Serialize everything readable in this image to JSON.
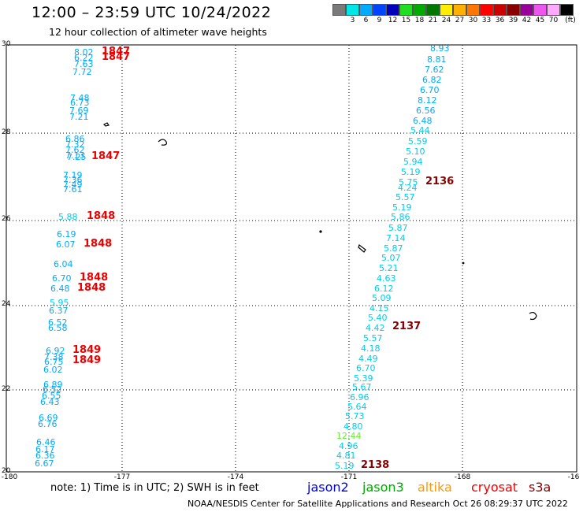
{
  "title": "12:00 – 23:59 UTC 10/24/2022",
  "subtitle": "12 hour collection of altimeter wave heights",
  "legend": {
    "unit": "(ft)",
    "bins": [
      {
        "label": "",
        "color": "#7a7a7a"
      },
      {
        "label": "3",
        "color": "#00e5e5"
      },
      {
        "label": "6",
        "color": "#00aaff"
      },
      {
        "label": "9",
        "color": "#0044ff"
      },
      {
        "label": "12",
        "color": "#0000bb"
      },
      {
        "label": "15",
        "color": "#22dd22"
      },
      {
        "label": "18",
        "color": "#00aa00"
      },
      {
        "label": "21",
        "color": "#007700"
      },
      {
        "label": "24",
        "color": "#ffee00"
      },
      {
        "label": "27",
        "color": "#ffb000"
      },
      {
        "label": "30",
        "color": "#ff7700"
      },
      {
        "label": "33",
        "color": "#ff0000"
      },
      {
        "label": "36",
        "color": "#cc0000"
      },
      {
        "label": "39",
        "color": "#880000"
      },
      {
        "label": "42",
        "color": "#990099"
      },
      {
        "label": "45",
        "color": "#ee55ee"
      },
      {
        "label": "70",
        "color": "#ffaaff"
      },
      {
        "label": "",
        "color": "#000000"
      }
    ]
  },
  "axes": {
    "x_ticks": [
      "-180",
      "-177",
      "-174",
      "-171",
      "-168",
      "-16"
    ],
    "y_ticks": [
      "30",
      "28",
      "26",
      "24",
      "22",
      "20"
    ]
  },
  "track_west": [
    {
      "v": "8.02",
      "c": "#00aaff"
    },
    {
      "v": "6.22",
      "c": "#00aaff"
    },
    {
      "v": "7.63",
      "c": "#00aaff"
    },
    {
      "v": "7.72",
      "c": "#00aaff"
    },
    {
      "v": "7.48",
      "c": "#00aaff"
    },
    {
      "v": "6.73",
      "c": "#00aaff"
    },
    {
      "v": "7.69",
      "c": "#00aaff"
    },
    {
      "v": "7.21",
      "c": "#00aaff"
    },
    {
      "v": "6.86",
      "c": "#00aaff"
    },
    {
      "v": "7.32",
      "c": "#00aaff"
    },
    {
      "v": "7.62",
      "c": "#00aaff"
    },
    {
      "v": "7.13",
      "c": "#00aaff"
    },
    {
      "v": "7.25",
      "c": "#00aaff"
    },
    {
      "v": "7.19",
      "c": "#00aaff"
    },
    {
      "v": "7.36",
      "c": "#00aaff"
    },
    {
      "v": "7.49",
      "c": "#00aaff"
    },
    {
      "v": "7.61",
      "c": "#00aaff"
    },
    {
      "v": "5.88",
      "c": "#00ccee"
    },
    {
      "v": "6.19",
      "c": "#00aaff"
    },
    {
      "v": "6.07",
      "c": "#00aaff"
    },
    {
      "v": "6.04",
      "c": "#00aaff"
    },
    {
      "v": "6.70",
      "c": "#00aaff"
    },
    {
      "v": "6.48",
      "c": "#00aaff"
    },
    {
      "v": "5.95",
      "c": "#00ccee"
    },
    {
      "v": "6.37",
      "c": "#00aaff"
    },
    {
      "v": "6.52",
      "c": "#00aaff"
    },
    {
      "v": "6.58",
      "c": "#00aaff"
    },
    {
      "v": "6.92",
      "c": "#00aaff"
    },
    {
      "v": "7.38",
      "c": "#00aaff"
    },
    {
      "v": "6.75",
      "c": "#00aaff"
    },
    {
      "v": "6.02",
      "c": "#00aaff"
    },
    {
      "v": "6.89",
      "c": "#00aaff"
    },
    {
      "v": "6.52",
      "c": "#00aaff"
    },
    {
      "v": "6.55",
      "c": "#00aaff"
    },
    {
      "v": "6.43",
      "c": "#00aaff"
    },
    {
      "v": "6.69",
      "c": "#00aaff"
    },
    {
      "v": "6.76",
      "c": "#00aaff"
    },
    {
      "v": "6.46",
      "c": "#00aaff"
    },
    {
      "v": "6.17",
      "c": "#00aaff"
    },
    {
      "v": "6.36",
      "c": "#00aaff"
    },
    {
      "v": "6.67",
      "c": "#00aaff"
    }
  ],
  "track_east": [
    {
      "v": "8.93",
      "c": "#00aaff"
    },
    {
      "v": "8.81",
      "c": "#00aaff"
    },
    {
      "v": "7.62",
      "c": "#00aaff"
    },
    {
      "v": "6.82",
      "c": "#00aaff"
    },
    {
      "v": "6.70",
      "c": "#00aaff"
    },
    {
      "v": "8.12",
      "c": "#00aaff"
    },
    {
      "v": "6.56",
      "c": "#00aaff"
    },
    {
      "v": "6.48",
      "c": "#00aaff"
    },
    {
      "v": "5.44",
      "c": "#00ccee"
    },
    {
      "v": "5.59",
      "c": "#00ccee"
    },
    {
      "v": "5.10",
      "c": "#00ccee"
    },
    {
      "v": "5.94",
      "c": "#00ccee"
    },
    {
      "v": "5.19",
      "c": "#00ccee"
    },
    {
      "v": "5.75",
      "c": "#00ccee"
    },
    {
      "v": "4.24",
      "c": "#00ccee"
    },
    {
      "v": "5.57",
      "c": "#00ccee"
    },
    {
      "v": "5.19",
      "c": "#00ccee"
    },
    {
      "v": "5.86",
      "c": "#00ccee"
    },
    {
      "v": "5.87",
      "c": "#00ccee"
    },
    {
      "v": "7.14",
      "c": "#00ccee"
    },
    {
      "v": "5.87",
      "c": "#00ccee"
    },
    {
      "v": "5.07",
      "c": "#00ccee"
    },
    {
      "v": "5.21",
      "c": "#00ccee"
    },
    {
      "v": "4.63",
      "c": "#00ccee"
    },
    {
      "v": "6.12",
      "c": "#00ccee"
    },
    {
      "v": "5.09",
      "c": "#00ccee"
    },
    {
      "v": "4.15",
      "c": "#00ccee"
    },
    {
      "v": "5.40",
      "c": "#00ccee"
    },
    {
      "v": "4.42",
      "c": "#00ccee"
    },
    {
      "v": "5.57",
      "c": "#00ccee"
    },
    {
      "v": "4.18",
      "c": "#00ccee"
    },
    {
      "v": "4.49",
      "c": "#00ccee"
    },
    {
      "v": "6.70",
      "c": "#00ccee"
    },
    {
      "v": "5.39",
      "c": "#00ccee"
    },
    {
      "v": "5.67",
      "c": "#00ccee"
    },
    {
      "v": "6.96",
      "c": "#00ccee"
    },
    {
      "v": "5.64",
      "c": "#00ccee"
    },
    {
      "v": "5.73",
      "c": "#00ccee"
    },
    {
      "v": "4.80",
      "c": "#00ccee"
    },
    {
      "v": "12.44",
      "c": "#66ee33"
    },
    {
      "v": "4.96",
      "c": "#00ccee"
    },
    {
      "v": "4.81",
      "c": "#00ccee"
    },
    {
      "v": "5.19",
      "c": "#00ccee"
    }
  ],
  "pass_labels": [
    {
      "t": "1847",
      "c": "#ee0000"
    },
    {
      "t": "1847",
      "c": "#ee0000"
    },
    {
      "t": "1847",
      "c": "#ee0000"
    },
    {
      "t": "1848",
      "c": "#ee0000"
    },
    {
      "t": "1848",
      "c": "#ee0000"
    },
    {
      "t": "1848",
      "c": "#ee0000"
    },
    {
      "t": "1848",
      "c": "#ee0000"
    },
    {
      "t": "1849",
      "c": "#ee0000"
    },
    {
      "t": "1849",
      "c": "#ee0000"
    },
    {
      "t": "2136",
      "c": "#880000"
    },
    {
      "t": "2137",
      "c": "#880000"
    },
    {
      "t": "2138",
      "c": "#880000"
    }
  ],
  "footer": {
    "note": "note:  1) Time is in UTC; 2) SWH is in feet",
    "satellites": [
      {
        "name": "jason2",
        "color": "#0000dd"
      },
      {
        "name": "jason3",
        "color": "#00aa00"
      },
      {
        "name": "altika",
        "color": "#ff9900"
      },
      {
        "name": "cryosat",
        "color": "#ee0000"
      },
      {
        "name": "s3a",
        "color": "#880000"
      }
    ],
    "credit": "NOAA/NESDIS Center for Satellite Applications and Research   Oct 26 08:29:37 UTC 2022"
  }
}
